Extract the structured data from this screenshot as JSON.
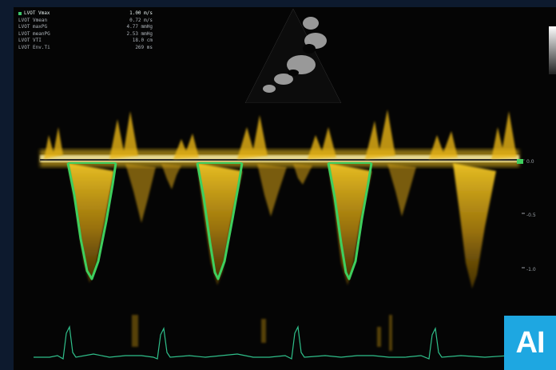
{
  "measurements": [
    {
      "label": "LVOT Vmax",
      "value": "1.00 m/s",
      "active": true
    },
    {
      "label": "LVOT Vmean",
      "value": "0.72 m/s",
      "active": false
    },
    {
      "label": "LVOT maxPG",
      "value": "4.77 mmHg",
      "active": false
    },
    {
      "label": "LVOT meanPG",
      "value": "2.53 mmHg",
      "active": false
    },
    {
      "label": "LVOT VTI",
      "value": "18.0 cm",
      "active": false
    },
    {
      "label": "LVOT Env.Ti",
      "value": "269 ms",
      "active": false
    }
  ],
  "velocity_scale": [
    "0.0",
    "-0.5",
    "-1.0"
  ],
  "badge": {
    "text": "AI"
  },
  "colors": {
    "background": "#0d1a2e",
    "spectrum": "#f2c21a",
    "trace": "#3ecf5e",
    "ecg": "#2fbf8a",
    "badge": "#1ea7e1"
  }
}
